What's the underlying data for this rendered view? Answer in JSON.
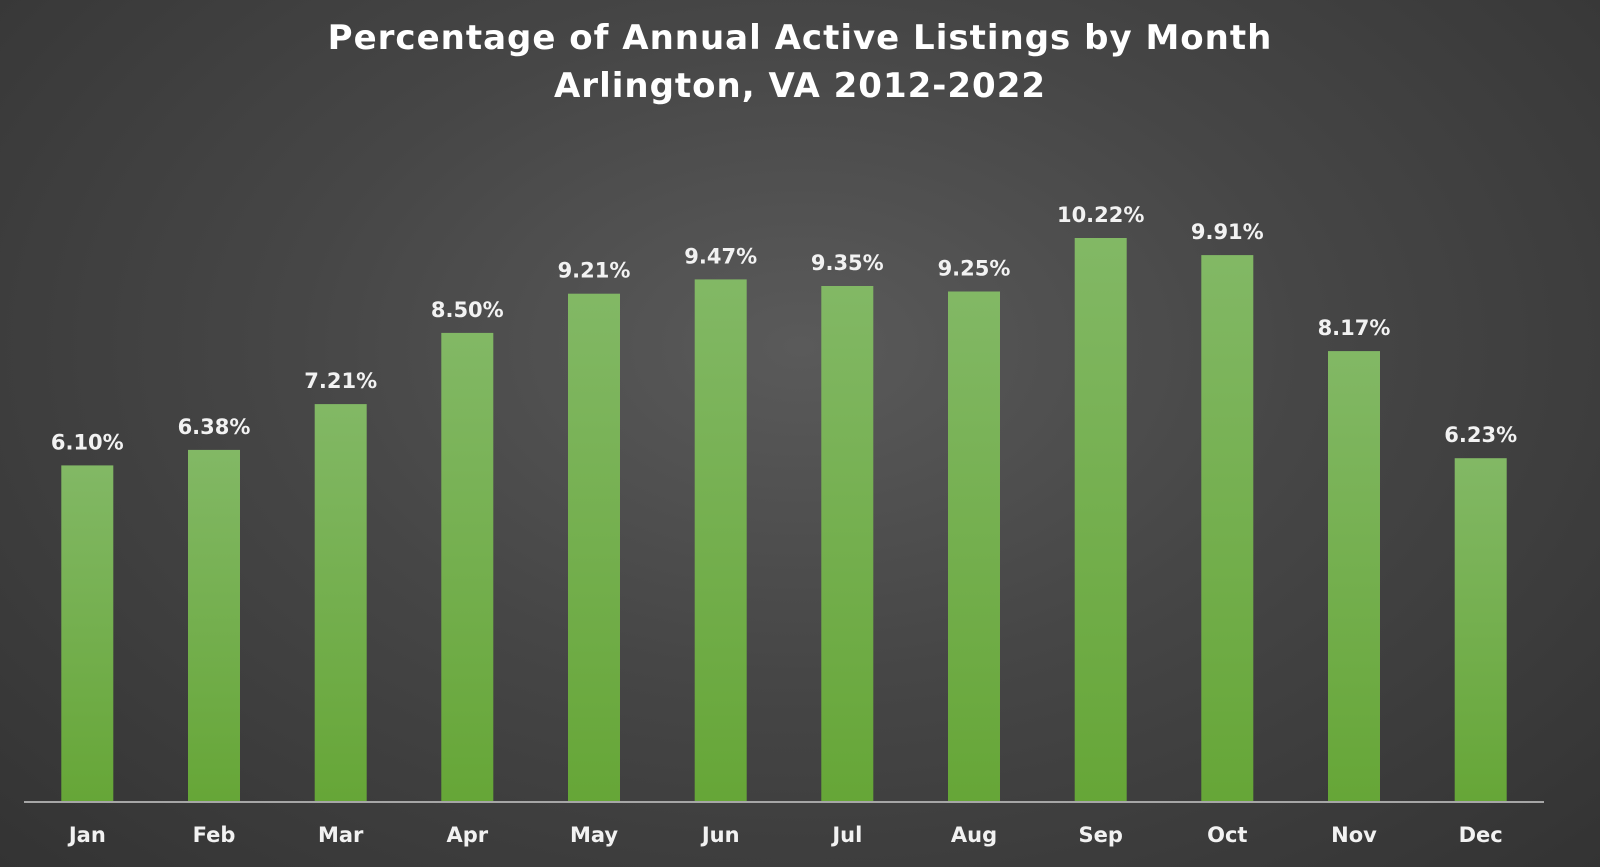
{
  "chart_data": {
    "type": "bar",
    "title": "Percentage of Annual Active Listings by Month",
    "subtitle": "Arlington, VA 2012-2022",
    "categories": [
      "Jan",
      "Feb",
      "Mar",
      "Apr",
      "May",
      "Jun",
      "Jul",
      "Aug",
      "Sep",
      "Oct",
      "Nov",
      "Dec"
    ],
    "values": [
      6.1,
      6.38,
      7.21,
      8.5,
      9.21,
      9.47,
      9.35,
      9.25,
      10.22,
      9.91,
      8.17,
      6.23
    ],
    "data_labels": [
      "6.10%",
      "6.38%",
      "7.21%",
      "8.50%",
      "9.21%",
      "9.47%",
      "9.35%",
      "9.25%",
      "10.22%",
      "9.91%",
      "8.17%",
      "6.23%"
    ],
    "xlabel": "",
    "ylabel": "",
    "ylim": [
      0,
      10.22
    ],
    "grid": false,
    "legend": "none",
    "bar_color_top": "#82b865",
    "bar_color_bottom": "#66a637",
    "axis_color": "#a6a6a6"
  }
}
